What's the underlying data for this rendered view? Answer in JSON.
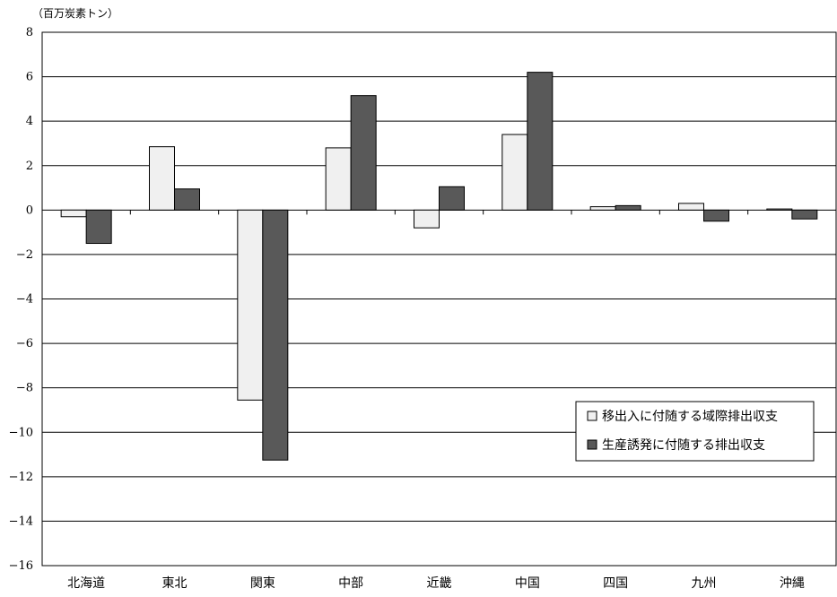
{
  "chart_data": {
    "type": "bar",
    "unit_label": "（百万炭素トン）",
    "categories": [
      "北海道",
      "東北",
      "関東",
      "中部",
      "近畿",
      "中国",
      "四国",
      "九州",
      "沖縄"
    ],
    "series": [
      {
        "name": "移出入に付随する域際排出収支",
        "color": "#f0f0f0",
        "values": [
          -0.3,
          2.85,
          -8.55,
          2.8,
          -0.8,
          3.4,
          0.15,
          0.3,
          0.05
        ]
      },
      {
        "name": "生産誘発に付随する排出収支",
        "color": "#595959",
        "values": [
          -1.5,
          0.95,
          -11.25,
          5.15,
          1.05,
          6.2,
          0.2,
          -0.5,
          -0.4
        ]
      }
    ],
    "yticks": [
      8,
      6,
      4,
      2,
      0,
      -2,
      -4,
      -6,
      -8,
      -10,
      -12,
      -14,
      -16
    ],
    "ylim": [
      -16,
      8
    ],
    "grid": true,
    "legend_position": "lower-right"
  }
}
